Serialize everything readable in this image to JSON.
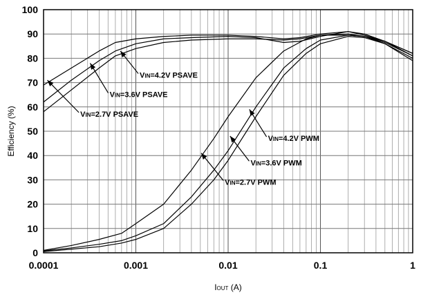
{
  "chart_data": {
    "type": "line",
    "xlabel": "IOUT (A)",
    "xlabel_main": "I",
    "xlabel_sub": "OUT",
    "xlabel_unit": " (A)",
    "ylabel": "Efficiency (%)",
    "xscale": "log",
    "xlim": [
      0.0001,
      1
    ],
    "ylim": [
      0,
      100
    ],
    "grid": true,
    "x_ticks": [
      {
        "value": 0.0001,
        "label": "0.0001"
      },
      {
        "value": 0.001,
        "label": "0.001"
      },
      {
        "value": 0.01,
        "label": "0.01"
      },
      {
        "value": 0.1,
        "label": "0.1"
      },
      {
        "value": 1,
        "label": "1"
      }
    ],
    "y_ticks": [
      {
        "value": 0,
        "label": "0"
      },
      {
        "value": 10,
        "label": "10"
      },
      {
        "value": 20,
        "label": "20"
      },
      {
        "value": 30,
        "label": "30"
      },
      {
        "value": 40,
        "label": "40"
      },
      {
        "value": 50,
        "label": "50"
      },
      {
        "value": 60,
        "label": "60"
      },
      {
        "value": 70,
        "label": "70"
      },
      {
        "value": 80,
        "label": "80"
      },
      {
        "value": 90,
        "label": "90"
      },
      {
        "value": 100,
        "label": "100"
      }
    ],
    "series": [
      {
        "name": "VIN=4.2V PSAVE",
        "label_pre": "V",
        "label_sub": "IN",
        "label_post": "=4.2V PSAVE",
        "x": [
          0.0001,
          0.0002,
          0.0004,
          0.0006,
          0.001,
          0.002,
          0.004,
          0.01,
          0.02,
          0.04,
          0.06,
          0.1,
          0.2,
          0.3,
          0.5,
          1
        ],
        "y": [
          58,
          67,
          76,
          81,
          84,
          86.5,
          87.5,
          88,
          88,
          87.5,
          88,
          89.5,
          90,
          89,
          86,
          79
        ]
      },
      {
        "name": "VIN=3.6V PSAVE",
        "label_pre": "V",
        "label_sub": "IN",
        "label_post": "=3.6V PSAVE",
        "x": [
          0.0001,
          0.0002,
          0.0004,
          0.0006,
          0.001,
          0.002,
          0.004,
          0.01,
          0.02,
          0.04,
          0.06,
          0.1,
          0.2,
          0.3,
          0.5,
          1
        ],
        "y": [
          62,
          71,
          79,
          83,
          86,
          88,
          88.5,
          89,
          88.5,
          86.5,
          87,
          89,
          91,
          89.5,
          87,
          81
        ]
      },
      {
        "name": "VIN=2.7V PSAVE",
        "label_pre": "V",
        "label_sub": "IN",
        "label_post": "=2.7V PSAVE",
        "x": [
          0.0001,
          0.0002,
          0.0004,
          0.0006,
          0.001,
          0.002,
          0.004,
          0.01,
          0.02,
          0.04,
          0.06,
          0.1,
          0.2,
          0.3,
          0.5,
          1
        ],
        "y": [
          69,
          76,
          83,
          86.5,
          88,
          89,
          89.5,
          89.5,
          89,
          88,
          88.5,
          90,
          91,
          90,
          87,
          82
        ]
      },
      {
        "name": "VIN=4.2V PWM",
        "label_pre": "V",
        "label_sub": "IN",
        "label_post": "=4.2V PWM",
        "x": [
          0.0001,
          0.0002,
          0.0004,
          0.0007,
          0.001,
          0.002,
          0.004,
          0.007,
          0.01,
          0.02,
          0.04,
          0.07,
          0.1,
          0.2,
          0.3,
          0.5,
          1
        ],
        "y": [
          0.5,
          1.5,
          2.5,
          4,
          5.5,
          10,
          20,
          30,
          38,
          56,
          73,
          82,
          86,
          89,
          88.5,
          86,
          80
        ]
      },
      {
        "name": "VIN=3.6V PWM",
        "label_pre": "V",
        "label_sub": "IN",
        "label_post": "=3.6V PWM",
        "x": [
          0.0001,
          0.0002,
          0.0004,
          0.0007,
          0.001,
          0.002,
          0.004,
          0.007,
          0.01,
          0.02,
          0.04,
          0.07,
          0.1,
          0.2,
          0.3,
          0.5,
          1
        ],
        "y": [
          0.8,
          2,
          3.5,
          5,
          7,
          12,
          23,
          34,
          42,
          60,
          76,
          84,
          87.5,
          89.5,
          89,
          86.5,
          81
        ]
      },
      {
        "name": "VIN=2.7V PWM",
        "label_pre": "V",
        "label_sub": "IN",
        "label_post": "=2.7V PWM",
        "x": [
          0.0001,
          0.0002,
          0.0004,
          0.0007,
          0.001,
          0.002,
          0.004,
          0.007,
          0.01,
          0.02,
          0.04,
          0.07,
          0.1,
          0.2,
          0.3,
          0.5,
          1
        ],
        "y": [
          1,
          3,
          5.5,
          8,
          12,
          20,
          34,
          47,
          56,
          72,
          83,
          88,
          89.5,
          89.5,
          89,
          87,
          82
        ]
      }
    ],
    "annotations": [
      {
        "series": "VIN=4.2V PSAVE",
        "text_x": 0.0011,
        "text_y": 72,
        "point_x": 0.00068,
        "point_y": 83
      },
      {
        "series": "VIN=3.6V PSAVE",
        "text_x": 0.00052,
        "text_y": 64,
        "point_x": 0.00032,
        "point_y": 78
      },
      {
        "series": "VIN=2.7V PSAVE",
        "text_x": 0.00025,
        "text_y": 56,
        "point_x": 0.00011,
        "point_y": 71
      },
      {
        "series": "VIN=4.2V PWM",
        "text_x": 0.027,
        "text_y": 46,
        "point_x": 0.017,
        "point_y": 59
      },
      {
        "series": "VIN=3.6V PWM",
        "text_x": 0.0175,
        "text_y": 36,
        "point_x": 0.0105,
        "point_y": 48
      },
      {
        "series": "VIN=2.7V PWM",
        "text_x": 0.0092,
        "text_y": 28,
        "point_x": 0.0051,
        "point_y": 41
      }
    ]
  }
}
